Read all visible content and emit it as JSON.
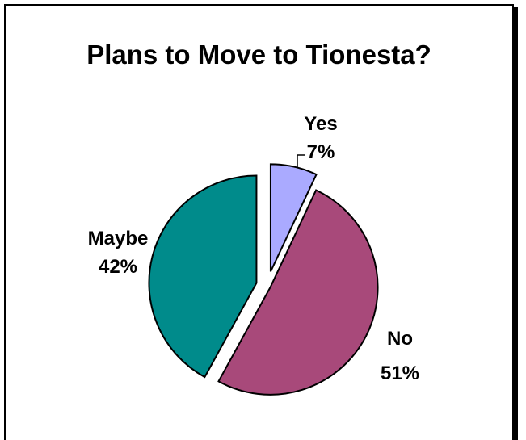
{
  "chart_data": {
    "type": "pie",
    "title": "Plans to Move to Tionesta?",
    "slices": [
      {
        "label": "Yes",
        "percent_label": "7%",
        "value": 7,
        "color": "#aaaaff"
      },
      {
        "label": "No",
        "percent_label": "51%",
        "value": 51,
        "color": "#a8497a"
      },
      {
        "label": "Maybe",
        "percent_label": "42%",
        "value": 42,
        "color": "#008b8b"
      }
    ],
    "exploded": true,
    "legend": "none"
  }
}
